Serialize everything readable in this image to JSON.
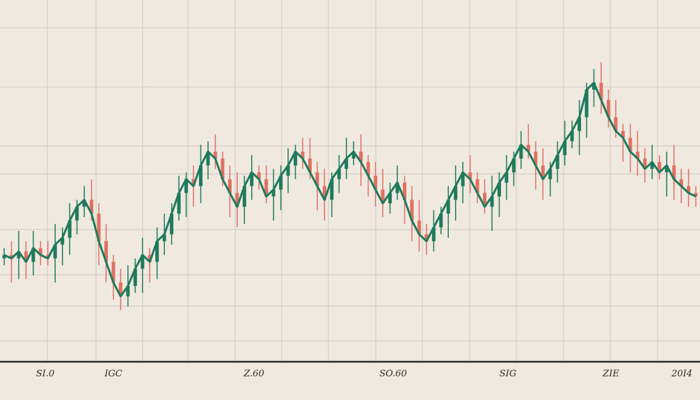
{
  "colors": {
    "background": "#efe9e0",
    "grid": "#cfc8bf",
    "up": "#1f7a5c",
    "down": "#e07060",
    "axis": "#2a2a2a"
  },
  "chart_data": {
    "type": "candlestick",
    "title": "",
    "xlabel": "",
    "ylabel": "",
    "grid": true,
    "ylim": [
      0,
      100
    ],
    "x_tick_labels": [
      "SI.0",
      "IGC",
      "Z.60",
      "SO.60",
      "SIG",
      "ZIE",
      "20I4"
    ],
    "series": [
      {
        "values": [
          30,
          29,
          31,
          28,
          32,
          30,
          29,
          33,
          35,
          40,
          44,
          46,
          42,
          34,
          28,
          22,
          18,
          21,
          26,
          30,
          28,
          34,
          36,
          42,
          48,
          52,
          50,
          56,
          60,
          58,
          52,
          48,
          44,
          50,
          54,
          52,
          47,
          49,
          53,
          56,
          60,
          58,
          54,
          50,
          46,
          52,
          55,
          58,
          60,
          57,
          53,
          49,
          45,
          48,
          51,
          46,
          40,
          36,
          34,
          38,
          42,
          46,
          50,
          54,
          52,
          48,
          44,
          47,
          51,
          54,
          58,
          62,
          60,
          56,
          52,
          55,
          59,
          63,
          66,
          70,
          78,
          80,
          75,
          70,
          66,
          64,
          60,
          58,
          55,
          57,
          54,
          56,
          52,
          50,
          48,
          47
        ]
      }
    ]
  }
}
